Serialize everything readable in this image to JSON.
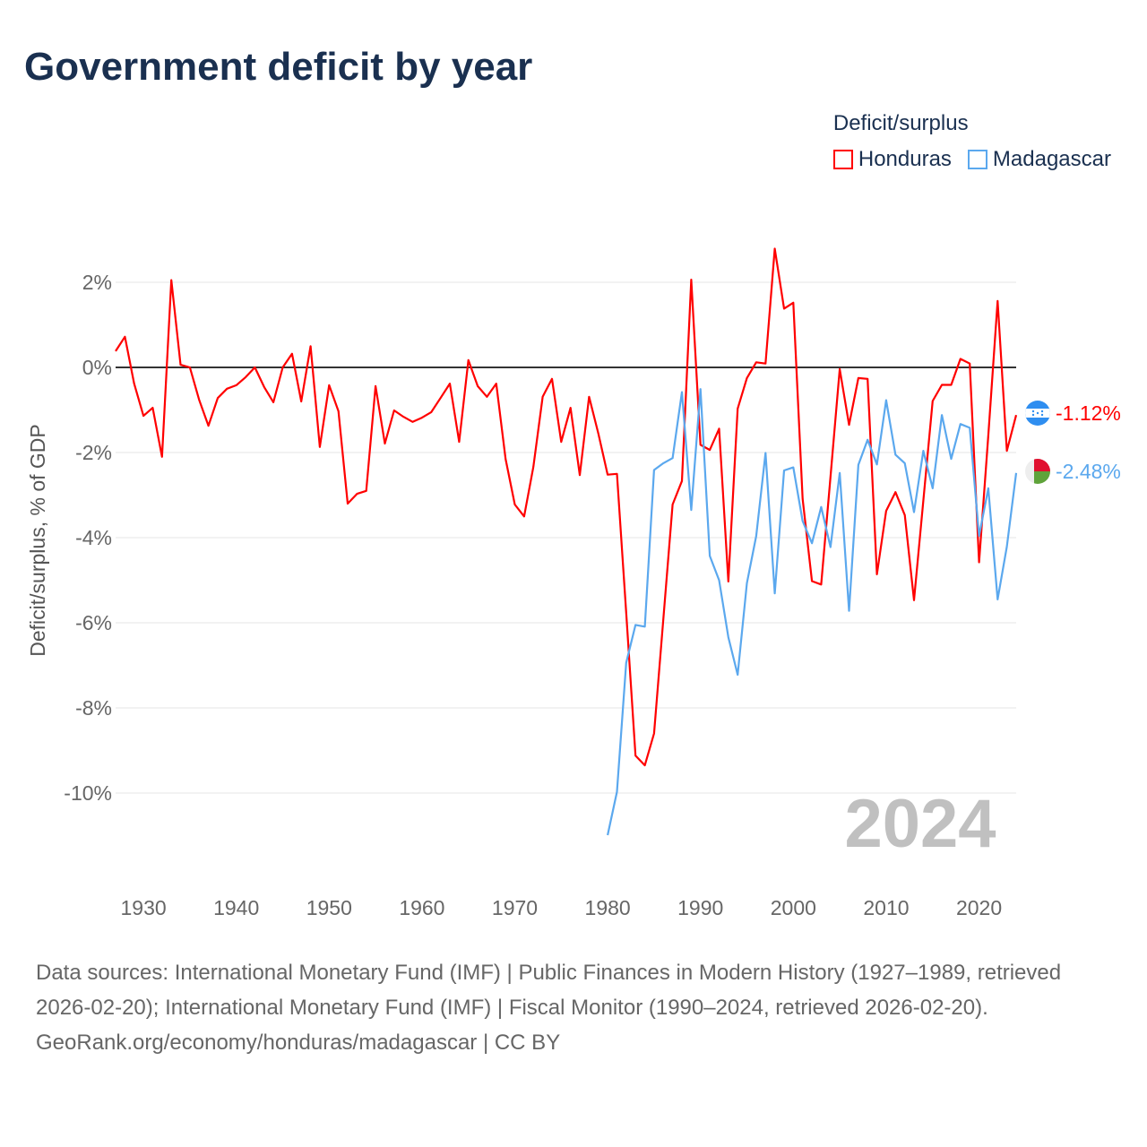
{
  "title": "Government deficit by year",
  "legend": {
    "title": "Deficit/surplus",
    "items": [
      {
        "name": "Honduras",
        "color": "#ff0000"
      },
      {
        "name": "Madagascar",
        "color": "#5ba8ee"
      }
    ]
  },
  "year_watermark": "2024",
  "footer": {
    "sources": "Data sources: International Monetary Fund (IMF) | Public Finances in Modern History (1927–1989, retrieved 2026-02-20); International Monetary Fund (IMF) | Fiscal Monitor (1990–2024, retrieved 2026-02-20).",
    "credit": "GeoRank.org/economy/honduras/madagascar | CC BY"
  },
  "chart_data": {
    "type": "line",
    "title": "Government deficit by year",
    "xlabel": "",
    "ylabel": "Deficit/surplus, % of GDP",
    "xlim": [
      1927,
      2024
    ],
    "ylim": [
      -11.2,
      3
    ],
    "xticks": [
      1930,
      1940,
      1950,
      1960,
      1970,
      1980,
      1990,
      2000,
      2010,
      2020
    ],
    "xtick_labels": [
      "1930",
      "1940",
      "1950",
      "1960",
      "1970",
      "1980",
      "1990",
      "2000",
      "2010",
      "2020"
    ],
    "yticks": [
      2,
      0,
      -2,
      -4,
      -6,
      -8,
      -10
    ],
    "ytick_labels": [
      "2%",
      "0%",
      "-2%",
      "-4%",
      "-6%",
      "-8%",
      "-10%"
    ],
    "grid": true,
    "legend_position": "top-right",
    "end_labels": [
      "-1.12%",
      "-2.48%"
    ],
    "series": [
      {
        "name": "Honduras",
        "color": "#ff0000",
        "start_year": 1927,
        "values": [
          0.38,
          0.72,
          -0.38,
          -1.14,
          -0.95,
          -2.1,
          2.05,
          0.06,
          0.0,
          -0.76,
          -1.37,
          -0.72,
          -0.5,
          -0.42,
          -0.23,
          0.0,
          -0.46,
          -0.82,
          0.0,
          0.32,
          -0.8,
          0.5,
          -1.87,
          -0.42,
          -1.03,
          -3.2,
          -2.97,
          -2.9,
          -0.44,
          -1.79,
          -1.01,
          -1.16,
          -1.28,
          -1.18,
          -1.05,
          -0.72,
          -0.38,
          -1.75,
          0.17,
          -0.44,
          -0.69,
          -0.38,
          -2.15,
          -3.22,
          -3.5,
          -2.34,
          -0.69,
          -0.27,
          -1.75,
          -0.95,
          -2.53,
          -0.69,
          -1.56,
          -2.52,
          -2.5,
          -5.76,
          -9.12,
          -9.35,
          -8.6,
          -5.9,
          -3.22,
          -2.67,
          2.06,
          -1.82,
          -1.94,
          -1.44,
          -5.03,
          -0.97,
          -0.25,
          0.12,
          0.09,
          2.79,
          1.38,
          1.52,
          -3.09,
          -5.02,
          -5.1,
          -2.57,
          -0.04,
          -1.35,
          -0.25,
          -0.27,
          -4.86,
          -3.37,
          -2.93,
          -3.47,
          -5.47,
          -3.13,
          -0.79,
          -0.41,
          -0.41,
          0.2,
          0.09,
          -4.58,
          -1.6,
          1.56,
          -1.96,
          -1.12
        ]
      },
      {
        "name": "Madagascar",
        "color": "#5ba8ee",
        "start_year": 1980,
        "values": [
          -10.99,
          -9.97,
          -6.94,
          -6.05,
          -6.09,
          -2.41,
          -2.25,
          -2.13,
          -0.58,
          -3.35,
          -0.51,
          -4.43,
          -5.0,
          -6.34,
          -7.22,
          -5.07,
          -3.96,
          -2.01,
          -5.31,
          -2.42,
          -2.35,
          -3.61,
          -4.13,
          -3.28,
          -4.22,
          -2.48,
          -5.72,
          -2.29,
          -1.7,
          -2.28,
          -0.77,
          -2.05,
          -2.25,
          -3.4,
          -1.96,
          -2.84,
          -1.12,
          -2.15,
          -1.33,
          -1.42,
          -3.96,
          -2.84,
          -5.45,
          -4.21,
          -2.48
        ]
      }
    ]
  }
}
